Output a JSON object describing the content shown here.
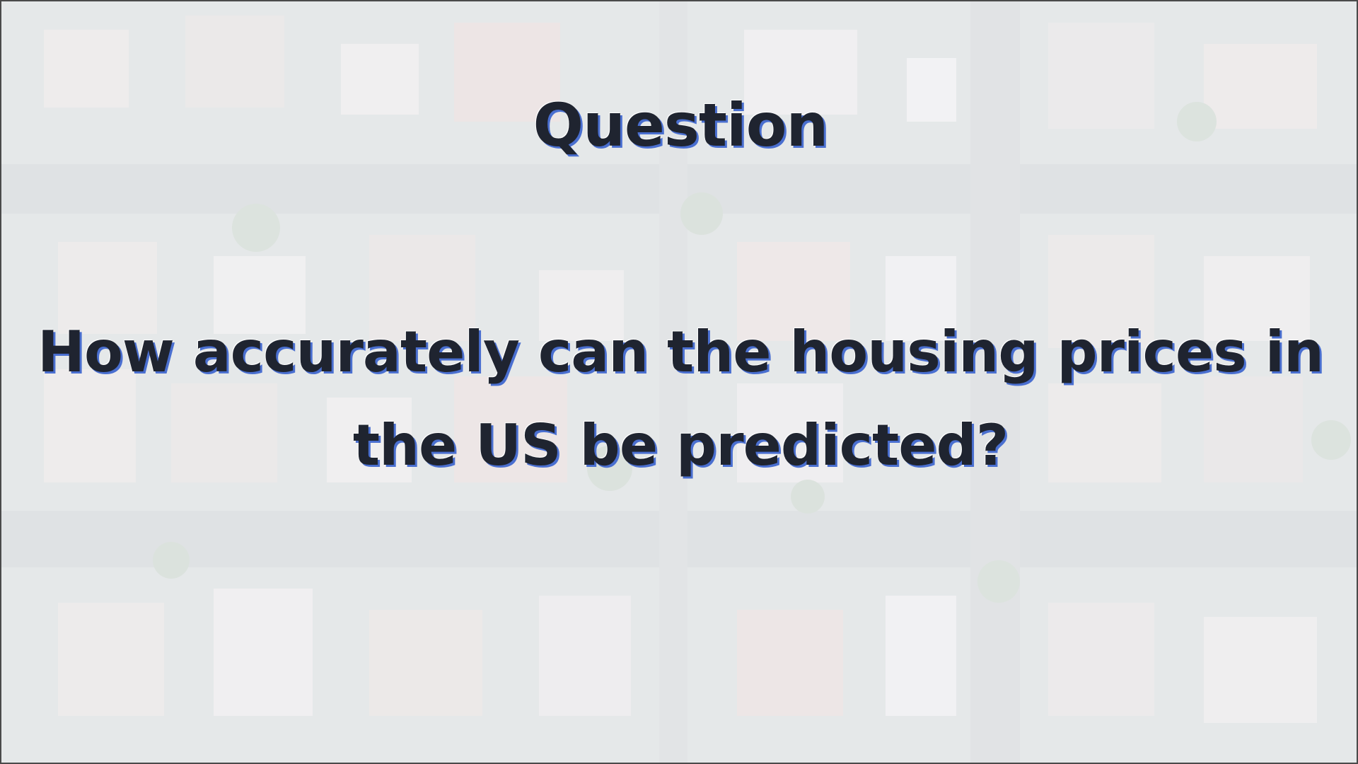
{
  "slide": {
    "title": "Question",
    "question": "How accurately can the housing prices in the US be predicted?"
  }
}
